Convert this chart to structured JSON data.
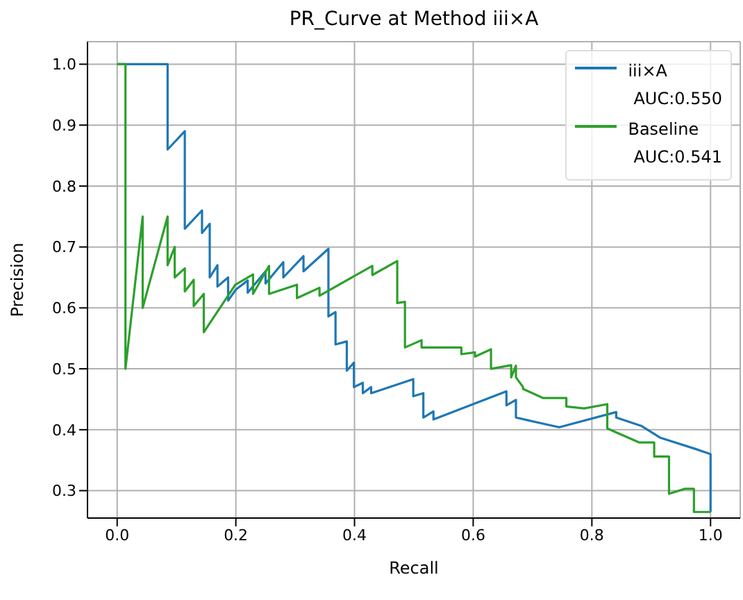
{
  "chart_data": {
    "type": "line",
    "title": "PR_Curve at Method iii×A",
    "xlabel": "Recall",
    "ylabel": "Precision",
    "xlim": [
      -0.05,
      1.05
    ],
    "ylim": [
      0.255,
      1.037
    ],
    "xticks": [
      {
        "value": 0,
        "label": "0.0"
      },
      {
        "value": 0.2,
        "label": "0.2"
      },
      {
        "value": 0.4,
        "label": "0.4"
      },
      {
        "value": 0.6,
        "label": "0.6"
      },
      {
        "value": 0.8,
        "label": "0.8"
      },
      {
        "value": 1,
        "label": "1.0"
      }
    ],
    "yticks": [
      {
        "value": 0.3,
        "label": "0.3"
      },
      {
        "value": 0.4,
        "label": "0.4"
      },
      {
        "value": 0.5,
        "label": "0.5"
      },
      {
        "value": 0.6,
        "label": "0.6"
      },
      {
        "value": 0.7,
        "label": "0.7"
      },
      {
        "value": 0.8,
        "label": "0.8"
      },
      {
        "value": 0.9,
        "label": "0.9"
      },
      {
        "value": 1,
        "label": "1.0"
      }
    ],
    "grid": true,
    "legend": "top right",
    "marker": "none",
    "line_style": "solid",
    "series": [
      {
        "name": "iii×A\nAUC:0.550",
        "color": "#1f77b4",
        "x": [
          0,
          0.085,
          0.085,
          0.114,
          0.114,
          0.143,
          0.143,
          0.156,
          0.156,
          0.169,
          0.169,
          0.187,
          0.187,
          0.2,
          0.22,
          0.22,
          0.25,
          0.25,
          0.28,
          0.28,
          0.314,
          0.314,
          0.356,
          0.356,
          0.368,
          0.368,
          0.387,
          0.387,
          0.399,
          0.399,
          0.414,
          0.414,
          0.428,
          0.428,
          0.499,
          0.499,
          0.516,
          0.516,
          0.533,
          0.533,
          0.656,
          0.656,
          0.672,
          0.672,
          0.745,
          0.841,
          0.841,
          0.884,
          0.915,
          0.976,
          1.0,
          1.0
        ],
        "values": [
          1.0,
          1.0,
          0.86,
          0.89,
          0.73,
          0.76,
          0.723,
          0.738,
          0.65,
          0.67,
          0.635,
          0.65,
          0.612,
          0.63,
          0.645,
          0.625,
          0.66,
          0.64,
          0.675,
          0.65,
          0.685,
          0.66,
          0.697,
          0.586,
          0.593,
          0.54,
          0.545,
          0.497,
          0.51,
          0.47,
          0.477,
          0.46,
          0.47,
          0.46,
          0.483,
          0.455,
          0.46,
          0.42,
          0.43,
          0.417,
          0.463,
          0.44,
          0.449,
          0.42,
          0.404,
          0.429,
          0.42,
          0.406,
          0.387,
          0.368,
          0.36,
          0.265
        ]
      },
      {
        "name": "Baseline\nAUC:0.541",
        "color": "#2ca02c",
        "x": [
          0,
          0.014,
          0.014,
          0.043,
          0.043,
          0.085,
          0.085,
          0.097,
          0.097,
          0.114,
          0.114,
          0.129,
          0.129,
          0.146,
          0.146,
          0.199,
          0.229,
          0.229,
          0.256,
          0.256,
          0.303,
          0.303,
          0.341,
          0.341,
          0.43,
          0.43,
          0.472,
          0.472,
          0.485,
          0.485,
          0.513,
          0.513,
          0.58,
          0.58,
          0.603,
          0.603,
          0.63,
          0.63,
          0.664,
          0.664,
          0.672,
          0.672,
          0.684,
          0.684,
          0.718,
          0.757,
          0.757,
          0.787,
          0.826,
          0.826,
          0.88,
          0.905,
          0.905,
          0.93,
          0.93,
          0.957,
          0.972,
          0.972,
          1.0
        ],
        "values": [
          1.0,
          1.0,
          0.5,
          0.75,
          0.6,
          0.75,
          0.67,
          0.7,
          0.65,
          0.665,
          0.627,
          0.646,
          0.603,
          0.623,
          0.56,
          0.638,
          0.655,
          0.623,
          0.669,
          0.623,
          0.638,
          0.616,
          0.633,
          0.62,
          0.669,
          0.654,
          0.677,
          0.608,
          0.61,
          0.535,
          0.547,
          0.535,
          0.535,
          0.524,
          0.527,
          0.52,
          0.532,
          0.5,
          0.506,
          0.486,
          0.505,
          0.486,
          0.47,
          0.467,
          0.452,
          0.452,
          0.438,
          0.435,
          0.442,
          0.402,
          0.379,
          0.379,
          0.356,
          0.356,
          0.295,
          0.303,
          0.303,
          0.265,
          0.265
        ]
      }
    ]
  }
}
